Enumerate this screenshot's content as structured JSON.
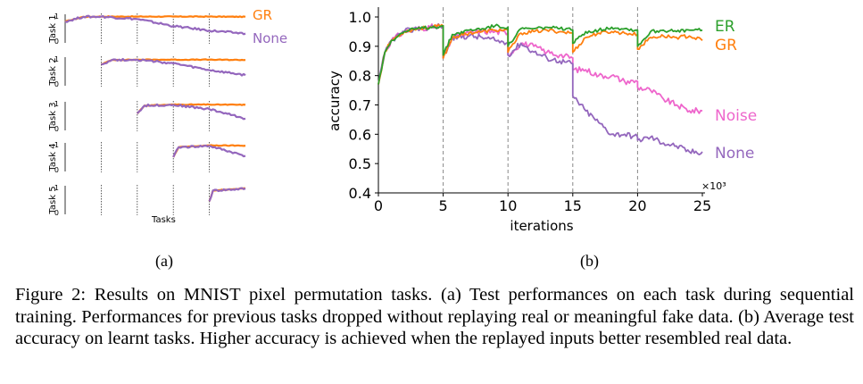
{
  "colors": {
    "GR": "#ff7f0e",
    "None": "#9467bd",
    "ER": "#2ca02c",
    "Noise": "#ee66cc"
  },
  "panel_a": {
    "label": "(a)",
    "task_labels": [
      "Task 1",
      "Task 2",
      "Task 3",
      "Task 4",
      "Task 5"
    ],
    "tick_top": "1",
    "tick_bottom": "0",
    "xlabel": "Tasks",
    "legend": [
      "GR",
      "None"
    ]
  },
  "panel_b": {
    "label": "(b)",
    "ylabel": "accuracy",
    "xlabel": "iterations",
    "multiplier": "×10³",
    "end_labels": [
      "ER",
      "GR",
      "Noise",
      "None"
    ]
  },
  "chart_data": [
    {
      "type": "line",
      "id": "a",
      "title": "",
      "xlabel": "Tasks",
      "ylabel_per_row": [
        "Task 1",
        "Task 2",
        "Task 3",
        "Task 4",
        "Task 5"
      ],
      "ylim": [
        0,
        1
      ],
      "yticks": [
        "0",
        "1"
      ],
      "task_boundaries": [
        1,
        2,
        3,
        4
      ],
      "x_range": [
        0,
        5
      ],
      "rows": [
        {
          "task": "Task 1",
          "start": 0,
          "series": [
            {
              "name": "GR",
              "x": [
                0,
                0.5,
                1,
                2,
                3,
                4,
                5
              ],
              "values": [
                0.78,
                0.97,
                0.98,
                0.98,
                0.98,
                0.98,
                0.97
              ]
            },
            {
              "name": "None",
              "x": [
                0,
                0.5,
                1,
                2,
                3,
                4,
                5
              ],
              "values": [
                0.78,
                0.97,
                0.98,
                0.88,
                0.6,
                0.42,
                0.3
              ]
            }
          ]
        },
        {
          "task": "Task 2",
          "start": 1,
          "series": [
            {
              "name": "GR",
              "x": [
                1,
                1.3,
                2,
                3,
                4,
                5
              ],
              "values": [
                0.78,
                0.96,
                0.97,
                0.97,
                0.97,
                0.96
              ]
            },
            {
              "name": "None",
              "x": [
                1,
                1.3,
                2,
                3,
                4,
                5
              ],
              "values": [
                0.78,
                0.96,
                0.97,
                0.82,
                0.55,
                0.35
              ]
            }
          ]
        },
        {
          "task": "Task 3",
          "start": 2,
          "series": [
            {
              "name": "GR",
              "x": [
                2,
                2.2,
                3,
                4,
                5
              ],
              "values": [
                0.6,
                0.92,
                0.96,
                0.96,
                0.95
              ]
            },
            {
              "name": "None",
              "x": [
                2,
                2.2,
                3,
                4,
                5
              ],
              "values": [
                0.6,
                0.92,
                0.95,
                0.78,
                0.4
              ]
            }
          ]
        },
        {
          "task": "Task 4",
          "start": 3,
          "series": [
            {
              "name": "GR",
              "x": [
                3,
                3.15,
                4,
                5
              ],
              "values": [
                0.5,
                0.9,
                0.97,
                0.96
              ]
            },
            {
              "name": "None",
              "x": [
                3,
                3.15,
                4,
                5
              ],
              "values": [
                0.5,
                0.9,
                0.95,
                0.55
              ]
            }
          ]
        },
        {
          "task": "Task 5",
          "start": 4,
          "series": [
            {
              "name": "GR",
              "x": [
                4,
                4.1,
                5
              ],
              "values": [
                0.45,
                0.88,
                0.97
              ]
            },
            {
              "name": "None",
              "x": [
                4,
                4.1,
                5
              ],
              "values": [
                0.45,
                0.88,
                0.96
              ]
            }
          ]
        }
      ],
      "legend": [
        "GR",
        "None"
      ]
    },
    {
      "type": "line",
      "id": "b",
      "title": "",
      "xlabel": "iterations",
      "ylabel": "accuracy",
      "xlim": [
        0,
        25
      ],
      "ylim": [
        0.4,
        1.05
      ],
      "xticks": [
        0,
        5,
        10,
        15,
        20,
        25
      ],
      "yticks": [
        0.4,
        0.5,
        0.6,
        0.7,
        0.8,
        0.9,
        1.0
      ],
      "x_multiplier": "×10³",
      "task_boundaries": [
        5,
        10,
        15,
        20
      ],
      "series": [
        {
          "name": "ER",
          "x": [
            0,
            0.5,
            1,
            2,
            3,
            4,
            5,
            5,
            5.7,
            7,
            8,
            9,
            10,
            10,
            11,
            12,
            13,
            14,
            15,
            15,
            16,
            17,
            18,
            19,
            20,
            20,
            21,
            22,
            23,
            24,
            25
          ],
          "values": [
            0.77,
            0.88,
            0.92,
            0.95,
            0.96,
            0.965,
            0.97,
            0.87,
            0.94,
            0.955,
            0.96,
            0.97,
            0.965,
            0.9,
            0.96,
            0.96,
            0.965,
            0.96,
            0.955,
            0.91,
            0.95,
            0.955,
            0.965,
            0.96,
            0.955,
            0.9,
            0.95,
            0.955,
            0.95,
            0.955,
            0.955
          ]
        },
        {
          "name": "GR",
          "x": [
            0,
            0.5,
            1,
            2,
            3,
            4,
            5,
            5,
            5.7,
            7,
            8,
            9,
            10,
            10,
            11,
            12,
            13,
            14,
            15,
            15,
            16,
            17,
            18,
            19,
            20,
            20,
            21,
            22,
            23,
            24,
            25
          ],
          "values": [
            0.77,
            0.88,
            0.92,
            0.95,
            0.96,
            0.965,
            0.97,
            0.86,
            0.93,
            0.945,
            0.95,
            0.955,
            0.955,
            0.88,
            0.945,
            0.95,
            0.955,
            0.95,
            0.945,
            0.88,
            0.93,
            0.945,
            0.95,
            0.945,
            0.94,
            0.89,
            0.93,
            0.935,
            0.93,
            0.935,
            0.92
          ]
        },
        {
          "name": "Noise",
          "x": [
            0,
            0.5,
            1,
            2,
            3,
            4,
            5,
            5,
            5.7,
            7,
            8,
            9,
            10,
            10,
            11,
            12,
            13,
            14,
            15,
            15,
            16,
            17,
            18,
            19,
            20,
            20,
            21,
            22,
            23,
            24,
            25
          ],
          "values": [
            0.77,
            0.88,
            0.92,
            0.95,
            0.96,
            0.965,
            0.97,
            0.86,
            0.93,
            0.945,
            0.95,
            0.95,
            0.945,
            0.87,
            0.91,
            0.9,
            0.88,
            0.87,
            0.86,
            0.82,
            0.82,
            0.8,
            0.8,
            0.78,
            0.78,
            0.76,
            0.75,
            0.72,
            0.7,
            0.68,
            0.68
          ]
        },
        {
          "name": "None",
          "x": [
            0,
            0.5,
            1,
            2,
            3,
            4,
            5,
            5,
            5.7,
            7,
            8,
            9,
            10,
            10,
            11,
            12,
            13,
            14,
            15,
            15,
            16,
            17,
            18,
            19,
            20,
            20,
            21,
            22,
            23,
            24,
            25
          ],
          "values": [
            0.77,
            0.88,
            0.92,
            0.95,
            0.96,
            0.965,
            0.97,
            0.86,
            0.93,
            0.935,
            0.93,
            0.92,
            0.91,
            0.87,
            0.91,
            0.88,
            0.86,
            0.85,
            0.84,
            0.73,
            0.68,
            0.64,
            0.6,
            0.6,
            0.59,
            0.58,
            0.59,
            0.57,
            0.56,
            0.54,
            0.54
          ]
        }
      ],
      "end_labels": [
        "ER",
        "GR",
        "Noise",
        "None"
      ]
    }
  ],
  "caption": {
    "text": "Figure 2: Results on MNIST pixel permutation tasks. (a) Test performances on each task during sequential training. Performances for previous tasks dropped without replaying real or meaningful fake data. (b) Average test accuracy on learnt tasks. Higher accuracy is achieved when the replayed inputs better resembled real data."
  }
}
